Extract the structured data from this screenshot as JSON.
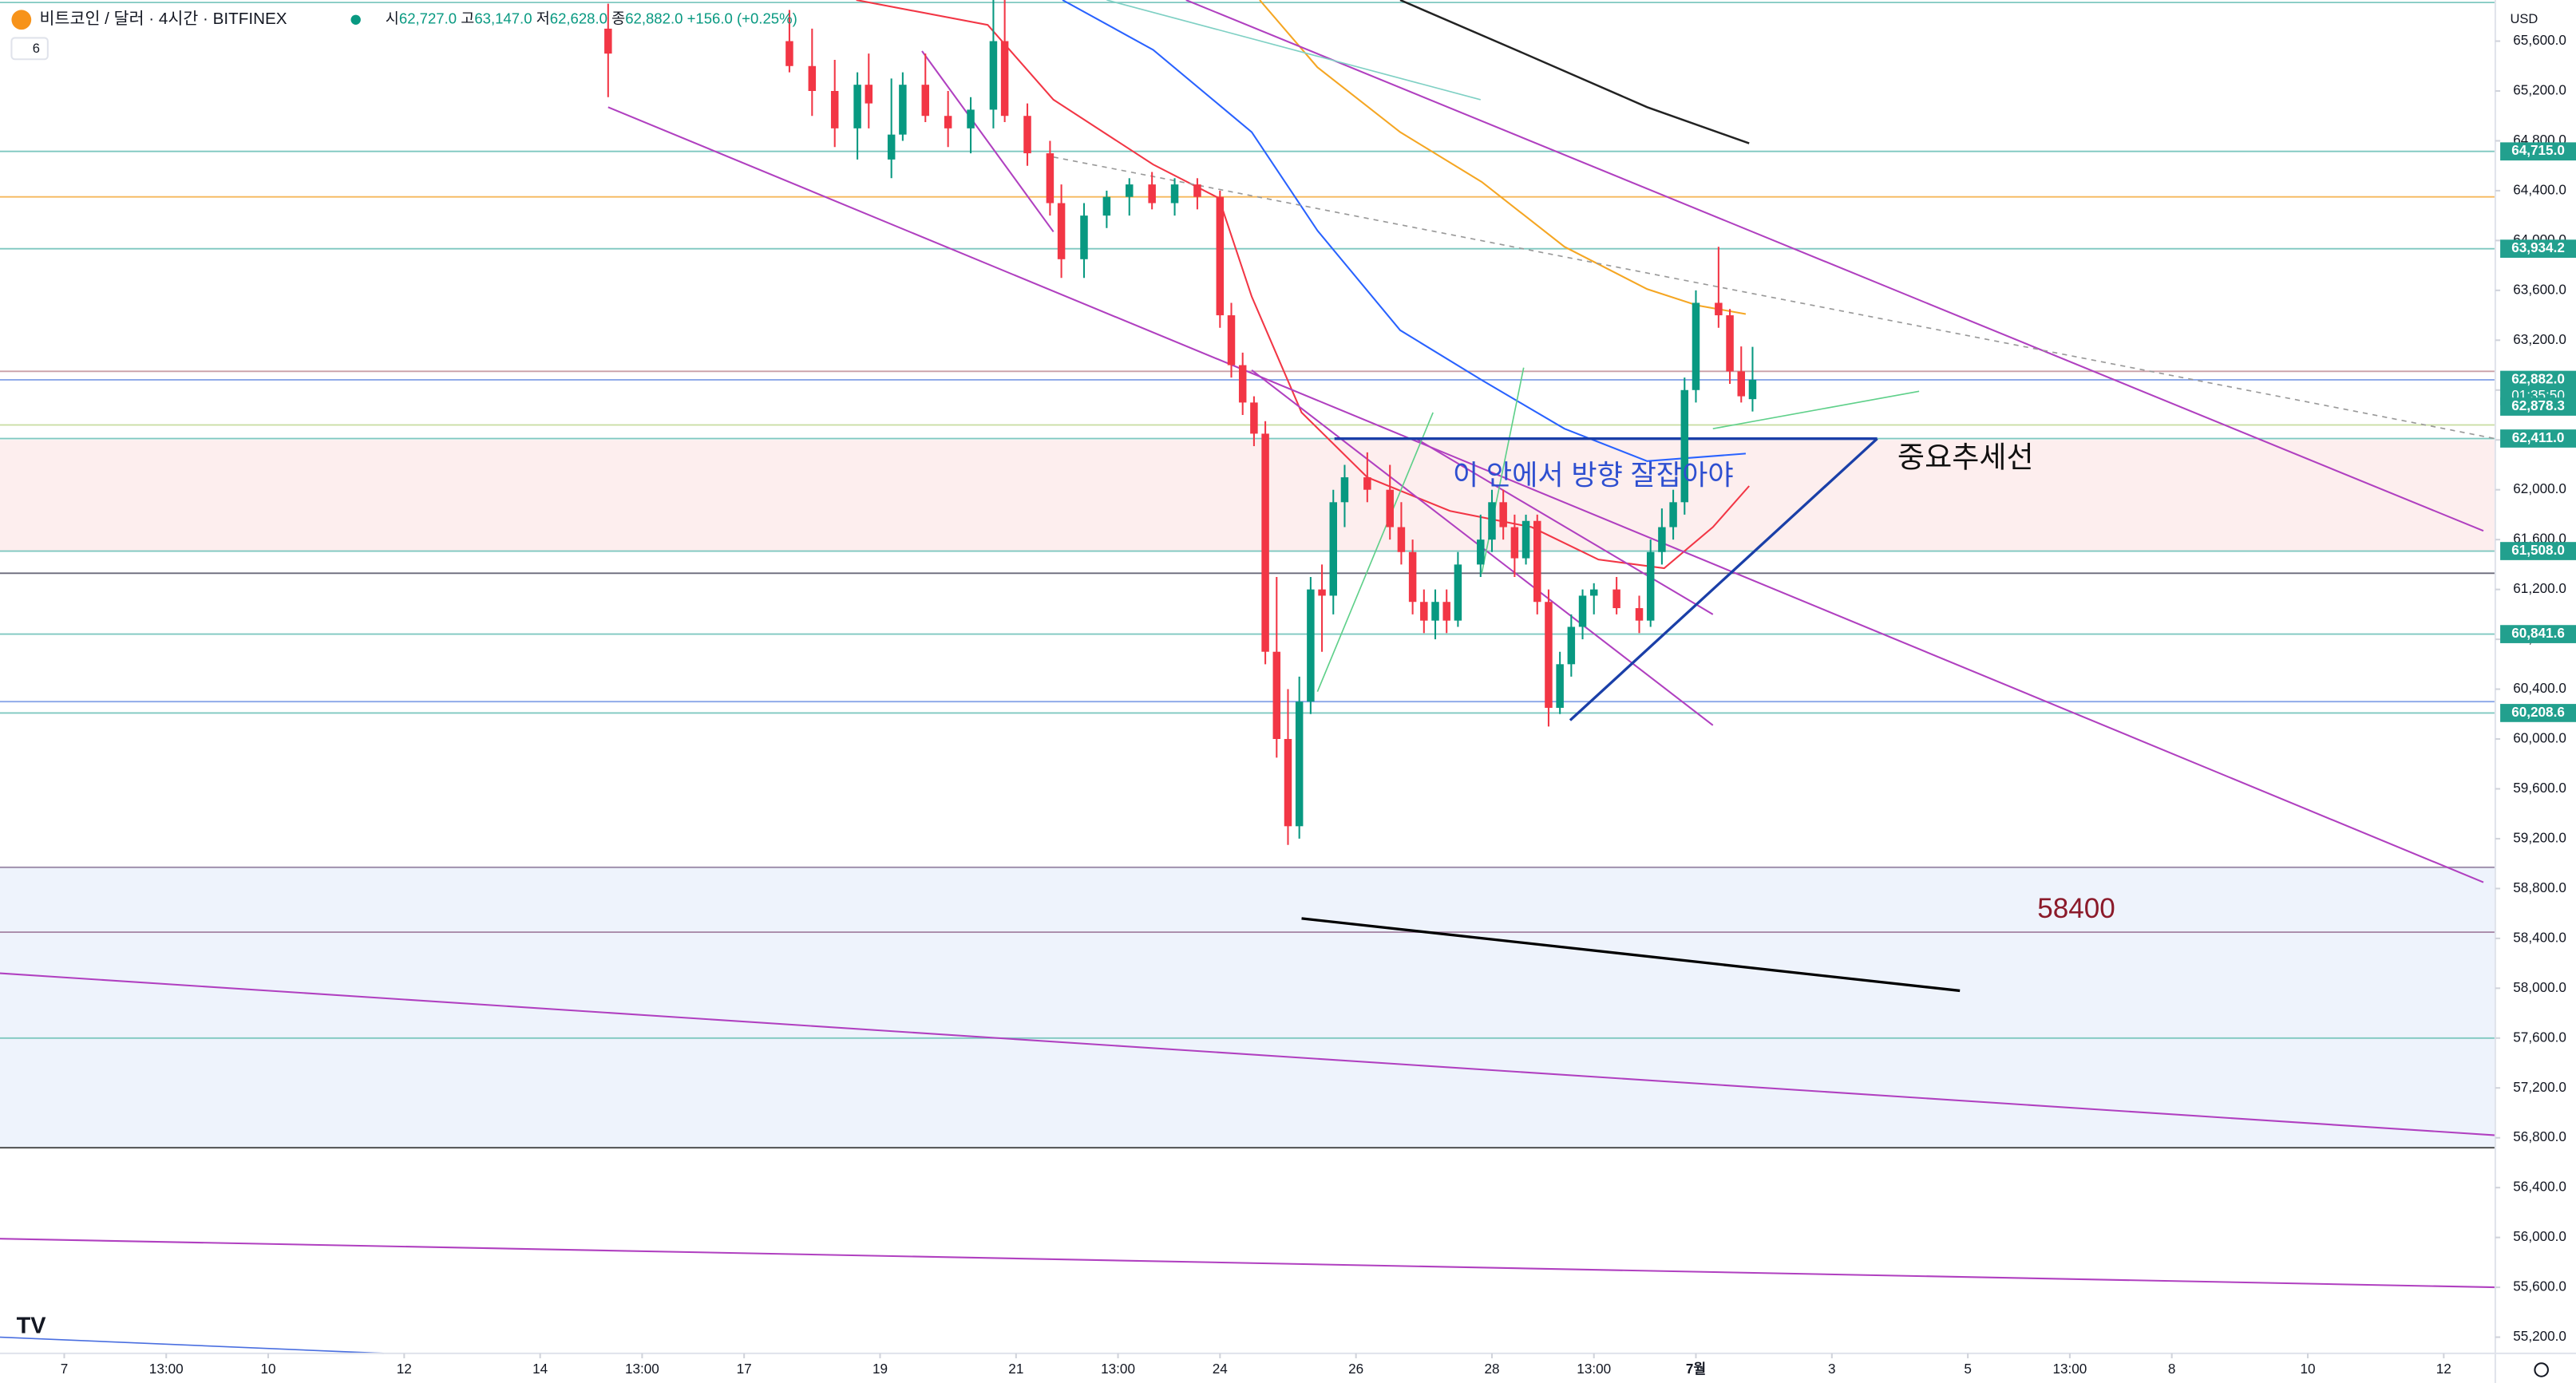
{
  "chart_data": {
    "type": "candlestick",
    "legend": {
      "symbol": "비트코인 / 달러 · 4시간 · BITFINEX",
      "open_label": "시",
      "open": "62,727.0",
      "high_label": "고",
      "high": "63,147.0",
      "low_label": "저",
      "low": "62,628.0",
      "close_label": "종",
      "close": "62,882.0",
      "change": "+156.0 (+0.25%)",
      "indicators": "6"
    },
    "currency": "USD",
    "countdown": "01:35:50",
    "xlim": [
      -5.67,
      214.55
    ],
    "xticks": [
      {
        "value": 0,
        "label": "7"
      },
      {
        "value": 9,
        "label": "13:00"
      },
      {
        "value": 18,
        "label": "10"
      },
      {
        "value": 30,
        "label": "12"
      },
      {
        "value": 42,
        "label": "14"
      },
      {
        "value": 51,
        "label": "13:00"
      },
      {
        "value": 60,
        "label": "17"
      },
      {
        "value": 72,
        "label": "19"
      },
      {
        "value": 84,
        "label": "21"
      },
      {
        "value": 93,
        "label": "13:00"
      },
      {
        "value": 102,
        "label": "24"
      },
      {
        "value": 114,
        "label": "26"
      },
      {
        "value": 126,
        "label": "28"
      },
      {
        "value": 135,
        "label": "13:00"
      },
      {
        "value": 144,
        "label": "7월"
      },
      {
        "value": 156,
        "label": "3"
      },
      {
        "value": 168,
        "label": "5"
      },
      {
        "value": 177,
        "label": "13:00"
      },
      {
        "value": 186,
        "label": "8"
      },
      {
        "value": 198,
        "label": "10"
      },
      {
        "value": 210,
        "label": "12"
      }
    ],
    "ylim": [
      55070,
      65930
    ],
    "yticks": [
      {
        "value": 55200,
        "label": "55,200.0"
      },
      {
        "value": 55600,
        "label": "55,600.0"
      },
      {
        "value": 56000,
        "label": "56,000.0"
      },
      {
        "value": 56400,
        "label": "56,400.0"
      },
      {
        "value": 56800,
        "label": "56,800.0"
      },
      {
        "value": 57200,
        "label": "57,200.0"
      },
      {
        "value": 57600,
        "label": "57,600.0"
      },
      {
        "value": 58000,
        "label": "58,000.0"
      },
      {
        "value": 58400,
        "label": "58,400.0"
      },
      {
        "value": 58800,
        "label": "58,800.0"
      },
      {
        "value": 59200,
        "label": "59,200.0"
      },
      {
        "value": 59600,
        "label": "59,600.0"
      },
      {
        "value": 60000,
        "label": "60,000.0"
      },
      {
        "value": 60400,
        "label": "60,400.0"
      },
      {
        "value": 60800,
        "label": "60,800.0"
      },
      {
        "value": 61200,
        "label": "61,200.0"
      },
      {
        "value": 61600,
        "label": "61,600.0"
      },
      {
        "value": 62000,
        "label": "62,000.0"
      },
      {
        "value": 62400,
        "label": "62,400.0"
      },
      {
        "value": 62800,
        "label": "62,800.0"
      },
      {
        "value": 63200,
        "label": "63,200.0"
      },
      {
        "value": 63600,
        "label": "63,600.0"
      },
      {
        "value": 64000,
        "label": "64,000.0"
      },
      {
        "value": 64400,
        "label": "64,400.0"
      },
      {
        "value": 64800,
        "label": "64,800.0"
      },
      {
        "value": 65200,
        "label": "65,200.0"
      },
      {
        "value": 65600,
        "label": "65,600.0"
      }
    ],
    "grid": false,
    "up_color": "#089981",
    "down_color": "#f23645",
    "series": {
      "x": [
        48,
        64,
        66,
        68,
        70,
        71,
        73,
        74,
        76,
        78,
        80,
        82,
        83,
        85,
        87,
        88,
        90,
        92,
        94,
        96,
        98,
        100,
        102,
        103,
        104,
        105,
        106,
        107,
        108,
        109,
        110,
        111,
        112,
        113,
        115,
        117,
        118,
        119,
        120,
        121,
        122,
        123,
        125,
        126,
        127,
        128,
        129,
        130,
        131,
        132,
        133,
        134,
        135,
        137,
        139,
        140,
        141,
        142,
        143,
        144,
        146,
        147,
        148,
        149
      ],
      "open": [
        65700,
        65600,
        65400,
        65200,
        64900,
        65250,
        64650,
        64850,
        65250,
        65000,
        64900,
        65050,
        65600,
        65000,
        64700,
        64300,
        63850,
        64200,
        64350,
        64450,
        64300,
        64450,
        64350,
        63400,
        63000,
        62700,
        62450,
        60700,
        60000,
        59300,
        60300,
        61200,
        61150,
        61900,
        62100,
        62000,
        61700,
        61500,
        61100,
        60950,
        61100,
        60950,
        61400,
        61600,
        61900,
        61700,
        61450,
        61750,
        61100,
        60250,
        60600,
        60900,
        61150,
        61200,
        61050,
        60950,
        61500,
        61700,
        61900,
        62800,
        63500,
        63400,
        62950,
        62727
      ],
      "high": [
        65900,
        65850,
        65700,
        65450,
        65350,
        65500,
        65300,
        65350,
        65500,
        65200,
        65150,
        65950,
        65950,
        65100,
        64800,
        64450,
        64300,
        64400,
        64500,
        64550,
        64500,
        64500,
        64400,
        63500,
        63100,
        62750,
        62550,
        61300,
        60400,
        60500,
        61300,
        61400,
        62000,
        62200,
        62300,
        62200,
        61900,
        61600,
        61200,
        61200,
        61200,
        61500,
        61800,
        62000,
        62000,
        61800,
        61800,
        61800,
        61200,
        60700,
        61000,
        61200,
        61250,
        61300,
        61150,
        61600,
        61850,
        62000,
        62900,
        63600,
        63950,
        63450,
        63150,
        63147
      ],
      "low": [
        65150,
        65350,
        65000,
        64750,
        64650,
        64900,
        64500,
        64800,
        64950,
        64750,
        64700,
        64900,
        64950,
        64600,
        64200,
        63700,
        63700,
        64100,
        64200,
        64250,
        64200,
        64250,
        63300,
        62900,
        62600,
        62350,
        60600,
        59850,
        59150,
        59200,
        60200,
        60700,
        61000,
        61700,
        61900,
        61600,
        61400,
        61000,
        60850,
        60800,
        60850,
        60900,
        61300,
        61500,
        61600,
        61300,
        61400,
        61000,
        60100,
        60200,
        60500,
        60800,
        61000,
        61000,
        60850,
        60900,
        61400,
        61600,
        61800,
        62700,
        63300,
        62850,
        62700,
        62628
      ],
      "close": [
        65500,
        65400,
        65200,
        64900,
        65250,
        65100,
        64850,
        65250,
        65000,
        64900,
        65050,
        65600,
        65000,
        64700,
        64300,
        63850,
        64200,
        64350,
        64450,
        64300,
        64450,
        64350,
        63400,
        63000,
        62700,
        62450,
        60700,
        60000,
        59300,
        60300,
        61200,
        61150,
        61900,
        62100,
        62000,
        61700,
        61500,
        61100,
        60950,
        61100,
        60950,
        61400,
        61600,
        61900,
        61700,
        61450,
        61750,
        61100,
        60250,
        60600,
        60900,
        61150,
        61200,
        61050,
        60950,
        61500,
        61700,
        61900,
        62800,
        63500,
        63400,
        62950,
        62750,
        62882
      ]
    },
    "zones": [
      {
        "from": 62400,
        "to": 61510,
        "color": "#fdeeee"
      },
      {
        "from": 58970,
        "to": 56720,
        "color": "#eef3fc"
      }
    ],
    "hlines": [
      {
        "value": 65910,
        "color": "#7fc8c0"
      },
      {
        "value": 64715.0,
        "color": "#7fc8c0"
      },
      {
        "value": 64350,
        "color": "#f5b85c"
      },
      {
        "value": 63934.2,
        "color": "#7fc8c0"
      },
      {
        "value": 62950,
        "color": "#c9a0a8"
      },
      {
        "value": 62882.0,
        "color": "#8aa6e8"
      },
      {
        "value": 62520,
        "color": "#c8dca0"
      },
      {
        "value": 62411.0,
        "color": "#7fc8c0"
      },
      {
        "value": 61508.0,
        "color": "#7fc8c0"
      },
      {
        "value": 61330,
        "color": "#6a6a7a"
      },
      {
        "value": 60841.6,
        "color": "#7fc8c0"
      },
      {
        "value": 60300,
        "color": "#8aa6e8"
      },
      {
        "value": 60208.6,
        "color": "#7fc8c0"
      },
      {
        "value": 58970,
        "color": "#9a8aa8"
      },
      {
        "value": 58450,
        "color": "#a88aa8"
      },
      {
        "value": 57600,
        "color": "#7fc8c0"
      },
      {
        "value": 56720,
        "color": "#444444"
      }
    ],
    "tags": [
      {
        "value": 64715.0,
        "label": "64,715.0"
      },
      {
        "value": 63934.2,
        "label": "63,934.2"
      },
      {
        "value": 62882.0,
        "label": "62,882.0"
      },
      {
        "value": 62878.3,
        "label": "62,878.3"
      },
      {
        "value": 62411.0,
        "label": "62,411.0"
      },
      {
        "value": 61508.0,
        "label": "61,508.0"
      },
      {
        "value": 60841.6,
        "label": "60,841.6"
      },
      {
        "value": 60208.6,
        "label": "60,208.6"
      }
    ],
    "tag_color": "#22a08e",
    "overlays": [
      {
        "color": "#222222",
        "width": 1.2,
        "x": [
          117.9,
          128.1,
          139.7,
          148.7
        ],
        "y": [
          65930,
          65530,
          65070,
          64780
        ]
      },
      {
        "color": "#f5a623",
        "width": 1,
        "x": [
          105.5,
          110.6,
          117.9,
          125.1,
          132.4,
          139.7,
          144.1,
          148.4
        ],
        "y": [
          65930,
          65390,
          64870,
          64470,
          63950,
          63610,
          63480,
          63410
        ]
      },
      {
        "color": "#2962ff",
        "width": 1,
        "x": [
          88.1,
          96.1,
          104.8,
          110.6,
          117.9,
          125.1,
          132.4,
          139.7,
          148.4
        ],
        "y": [
          65930,
          65530,
          64870,
          64080,
          63280,
          62880,
          62490,
          62230,
          62290
        ]
      },
      {
        "color": "#f23645",
        "width": 1,
        "x": [
          69.9,
          81.5,
          87.3,
          96.1,
          101.9,
          104.8,
          109.2,
          115,
          122.3,
          129.5,
          135.4,
          141.2,
          145.5,
          148.7
        ],
        "y": [
          65930,
          65730,
          65130,
          64610,
          64340,
          63550,
          62620,
          62100,
          61830,
          61700,
          61440,
          61370,
          61700,
          62030
        ]
      },
      {
        "color": "#b040c0",
        "width": 1,
        "x": [
          48,
          213.5
        ],
        "y": [
          65070,
          58850
        ]
      },
      {
        "color": "#b040c0",
        "width": 1,
        "x": [
          99,
          213.5
        ],
        "y": [
          65930,
          61670
        ]
      },
      {
        "color": "#b040c0",
        "width": 1,
        "x": [
          -5.67,
          214.55
        ],
        "y": [
          58120,
          56820
        ]
      },
      {
        "color": "#b040c0",
        "width": 1,
        "x": [
          -5.67,
          214.55
        ],
        "y": [
          55990,
          55600
        ]
      },
      {
        "color": "#b040c0",
        "width": 1,
        "x": [
          119.3,
          145.5
        ],
        "y": [
          62410,
          61000
        ]
      },
      {
        "color": "#b040c0",
        "width": 1,
        "x": [
          104.8,
          145.5
        ],
        "y": [
          62960,
          60110
        ]
      },
      {
        "color": "#b040c0",
        "width": 1,
        "x": [
          75.7,
          87.3
        ],
        "y": [
          65520,
          64070
        ]
      },
      {
        "color": "#999999",
        "width": 0.8,
        "dash": true,
        "x": [
          87.3,
          214.55
        ],
        "y": [
          64670,
          62410
        ]
      },
      {
        "color": "#7fd0c4",
        "width": 0.8,
        "x": [
          92,
          125
        ],
        "y": [
          65930,
          65130
        ]
      },
      {
        "color": "#5fd08a",
        "width": 0.8,
        "x": [
          110.6,
          120.8
        ],
        "y": [
          60380,
          62620
        ]
      },
      {
        "color": "#5fd08a",
        "width": 0.8,
        "x": [
          125.1,
          128.8
        ],
        "y": [
          61330,
          62980
        ]
      },
      {
        "color": "#5fd08a",
        "width": 0.8,
        "x": [
          145.5,
          163.7
        ],
        "y": [
          62490,
          62790
        ]
      },
      {
        "color": "#000000",
        "width": 1.6,
        "x": [
          109.2,
          167.3
        ],
        "y": [
          58560,
          57980
        ]
      },
      {
        "color": "#1a3fa8",
        "width": 1.6,
        "x": [
          112.1,
          160
        ],
        "y": [
          62410,
          62410
        ]
      },
      {
        "color": "#1a3fa8",
        "width": 1.6,
        "x": [
          132.9,
          160
        ],
        "y": [
          60150,
          62410
        ]
      },
      {
        "color": "#4a6fe0",
        "width": 0.8,
        "x": [
          -5.67,
          28.2
        ],
        "y": [
          55200,
          55070
        ]
      }
    ],
    "annotations": [
      {
        "text": "이 안에서 방향 잘잡아야",
        "color": "#2e4fd0"
      },
      {
        "text": "중요추세선",
        "color": "#111111"
      },
      {
        "text": "58400",
        "color": "#8b1a2a"
      }
    ]
  }
}
